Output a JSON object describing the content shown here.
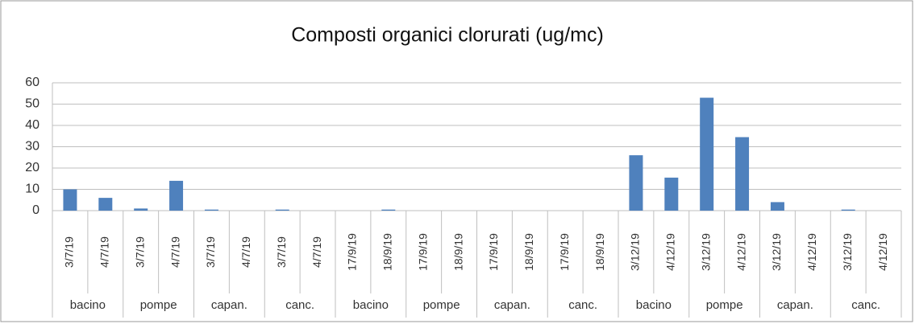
{
  "chart_data": {
    "type": "bar",
    "title": "Composti organici clorurati (ug/mc)",
    "categories": [
      "3/7/19",
      "4/7/19",
      "3/7/19",
      "4/7/19",
      "3/7/19",
      "4/7/19",
      "3/7/19",
      "4/7/19",
      "17/9/19",
      "18/9/19",
      "17/9/19",
      "18/9/19",
      "17/9/19",
      "18/9/19",
      "17/9/19",
      "18/9/19",
      "3/12/19",
      "4/12/19",
      "3/12/19",
      "4/12/19",
      "3/12/19",
      "4/12/19",
      "3/12/19",
      "4/12/19"
    ],
    "groups": [
      "bacino",
      "pompe",
      "capan.",
      "canc.",
      "bacino",
      "pompe",
      "capan.",
      "canc.",
      "bacino",
      "pompe",
      "capan.",
      "canc."
    ],
    "values": [
      10,
      6,
      1,
      14,
      0.5,
      0,
      0.5,
      0,
      0,
      0.5,
      0,
      0,
      0,
      0,
      0,
      0,
      26,
      15.5,
      53,
      34.5,
      4,
      0,
      0.5,
      0
    ],
    "color": "#4f81bd",
    "ylim": [
      0,
      60
    ],
    "yticks": [
      0,
      10,
      20,
      30,
      40,
      50,
      60
    ],
    "grid": true
  }
}
